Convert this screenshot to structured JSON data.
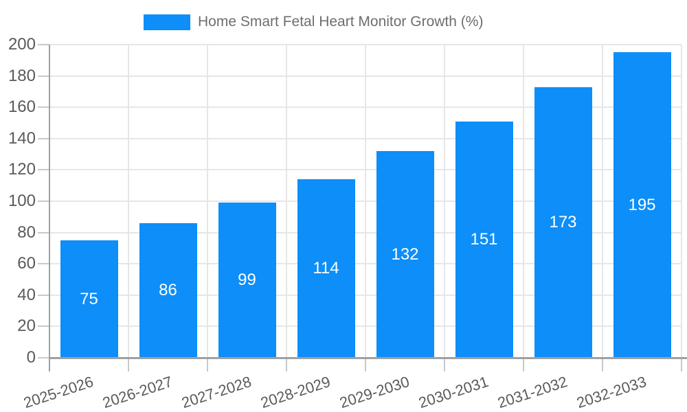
{
  "legend": {
    "label": "Home Smart Fetal Heart Monitor Growth (%)"
  },
  "chart_data": {
    "type": "bar",
    "title": "Home Smart Fetal Heart Monitor Growth (%)",
    "categories": [
      "2025-2026",
      "2026-2027",
      "2027-2028",
      "2028-2029",
      "2029-2030",
      "2030-2031",
      "2031-2032",
      "2032-2033"
    ],
    "values": [
      75,
      86,
      99,
      114,
      132,
      151,
      173,
      195
    ],
    "xlabel": "",
    "ylabel": "",
    "ylim": [
      0,
      200
    ],
    "ytick_step": 20,
    "yticks": [
      0,
      20,
      40,
      60,
      80,
      100,
      120,
      140,
      160,
      180,
      200
    ],
    "grid": true,
    "legend_position": "top-center",
    "bar_color": "#0d8ef8",
    "value_label_color": "#ffffff",
    "gridline_color": "#e6e6e6",
    "tick_color": "#c9c9c9",
    "axis_color": "#a0a0a0",
    "label_color": "#5a5a5a",
    "legend_text_color": "#6e6e6e"
  }
}
